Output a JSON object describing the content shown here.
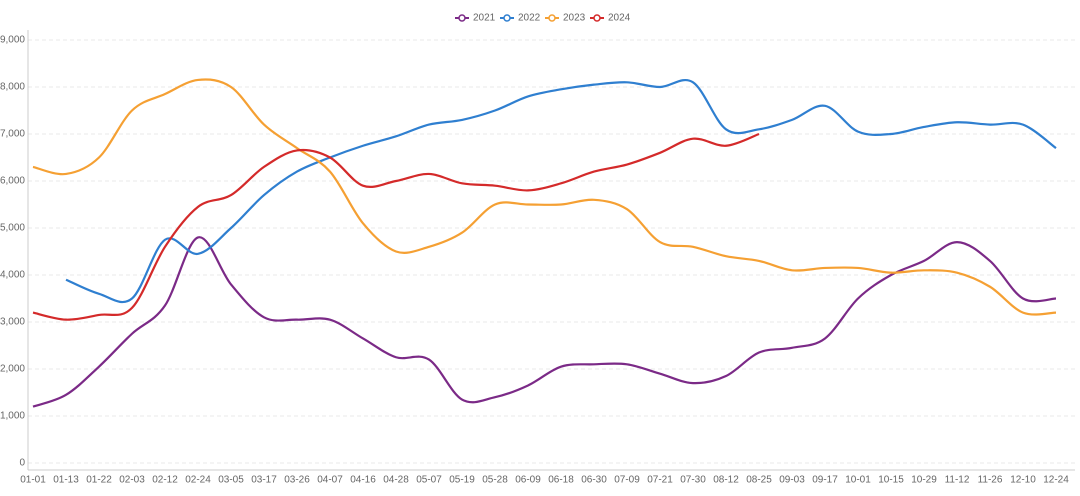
{
  "chart_data": {
    "type": "line",
    "categories": [
      "01-01",
      "01-13",
      "01-22",
      "02-03",
      "02-12",
      "02-24",
      "03-05",
      "03-17",
      "03-26",
      "04-07",
      "04-16",
      "04-28",
      "05-07",
      "05-19",
      "05-28",
      "06-09",
      "06-18",
      "06-30",
      "07-09",
      "07-21",
      "07-30",
      "08-12",
      "08-25",
      "09-03",
      "09-17",
      "10-01",
      "10-15",
      "10-29",
      "11-12",
      "11-26",
      "12-10",
      "12-24"
    ],
    "series": [
      {
        "name": "2021",
        "color": "#7b2a87",
        "values": [
          1200,
          1450,
          2050,
          2750,
          3350,
          4800,
          3800,
          3100,
          3050,
          3050,
          2650,
          2250,
          2200,
          1350,
          1400,
          1650,
          2050,
          2100,
          2100,
          1900,
          1700,
          1850,
          2350,
          2450,
          2650,
          3500,
          4000,
          4300,
          4700,
          4300,
          3500,
          3500
        ]
      },
      {
        "name": "2022",
        "color": "#2f7fd0",
        "values": [
          null,
          3900,
          3600,
          3500,
          4750,
          4450,
          5000,
          5700,
          6200,
          6500,
          6750,
          6950,
          7200,
          7300,
          7500,
          7800,
          7950,
          8050,
          8100,
          8000,
          8100,
          7100,
          7100,
          7300,
          7600,
          7050,
          7000,
          7150,
          7250,
          7200,
          7200,
          6700
        ]
      },
      {
        "name": "2023",
        "color": "#f5a033",
        "values": [
          6300,
          6150,
          6500,
          7500,
          7850,
          8150,
          8000,
          7200,
          6700,
          6200,
          5100,
          4500,
          4600,
          4900,
          5500,
          5500,
          5500,
          5600,
          5400,
          4700,
          4600,
          4400,
          4300,
          4100,
          4150,
          4150,
          4050,
          4100,
          4050,
          3750,
          3200,
          3200
        ]
      },
      {
        "name": "2024",
        "color": "#d42a2a",
        "values": [
          3200,
          3050,
          3150,
          3300,
          4600,
          5450,
          5700,
          6300,
          6650,
          6500,
          5900,
          6000,
          6150,
          5950,
          5900,
          5800,
          5950,
          6200,
          6350,
          6600,
          6900,
          6750,
          7000,
          null,
          null,
          null,
          null,
          null,
          null,
          null,
          null,
          null
        ]
      }
    ],
    "ylim": [
      0,
      9000
    ],
    "yticks": [
      0,
      {
        "value": 1000,
        "label": "1,000"
      },
      {
        "value": 2000,
        "label": "2,000"
      },
      {
        "value": 3000,
        "label": "3,000"
      },
      {
        "value": 4000,
        "label": "4,000"
      },
      {
        "value": 5000,
        "label": "5,000"
      },
      {
        "value": 6000,
        "label": "6,000"
      },
      {
        "value": 7000,
        "label": "7,000"
      },
      {
        "value": 8000,
        "label": "8,000"
      },
      {
        "value": 9000,
        "label": "9,000"
      }
    ],
    "grid": true,
    "legend": "top"
  }
}
